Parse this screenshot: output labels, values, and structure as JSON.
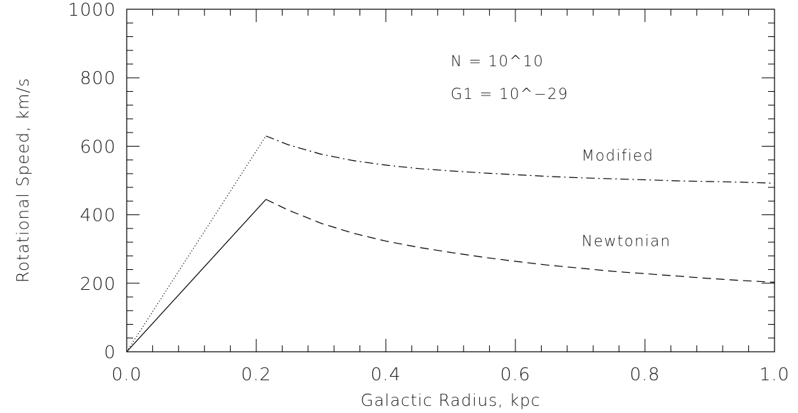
{
  "chart_data": {
    "type": "line",
    "title": "",
    "xlabel": "Galactic Radius, kpc",
    "ylabel": "Rotational Speed, km/s",
    "xlim": [
      0.0,
      1.0
    ],
    "ylim": [
      0,
      1000
    ],
    "x_ticks": [
      "0.0",
      "0.2",
      "0.4",
      "0.6",
      "0.8",
      "1.0"
    ],
    "y_ticks": [
      "0",
      "200",
      "400",
      "600",
      "800",
      "1000"
    ],
    "x_tick_values": [
      0.0,
      0.2,
      0.4,
      0.6,
      0.8,
      1.0
    ],
    "y_tick_values": [
      0,
      200,
      400,
      600,
      800,
      1000
    ],
    "grid": false,
    "legend": "none",
    "annotations": [
      {
        "text": "N  =  10^10",
        "x": 0.5,
        "y": 850
      },
      {
        "text": "G1  =  10^−29",
        "x": 0.5,
        "y": 755
      },
      {
        "text": "Modified",
        "x": 0.702,
        "y": 575
      },
      {
        "text": "Newtonian",
        "x": 0.702,
        "y": 325
      }
    ],
    "series": [
      {
        "name": "Modified",
        "style": "dotted",
        "x": [
          0.0,
          0.215
        ],
        "y": [
          0,
          630
        ]
      },
      {
        "name": "Modified",
        "style": "dashdot",
        "x": [
          0.215,
          0.25,
          0.3,
          0.35,
          0.4,
          0.45,
          0.5,
          0.55,
          0.6,
          0.65,
          0.7,
          0.75,
          0.8,
          0.85,
          0.9,
          0.95,
          1.0
        ],
        "y": [
          630,
          604,
          577,
          558,
          545,
          535,
          528,
          522,
          517,
          512,
          508,
          505,
          502,
          499,
          497,
          495,
          492
        ]
      },
      {
        "name": "Newtonian",
        "style": "solid",
        "x": [
          0.0,
          0.215
        ],
        "y": [
          0,
          445
        ]
      },
      {
        "name": "Newtonian",
        "style": "dashed",
        "x": [
          0.215,
          0.25,
          0.3,
          0.35,
          0.4,
          0.45,
          0.5,
          0.55,
          0.6,
          0.65,
          0.7,
          0.75,
          0.8,
          0.85,
          0.9,
          0.95,
          1.0
        ],
        "y": [
          445,
          413,
          375,
          346,
          323,
          305,
          290,
          276,
          264,
          253,
          244,
          235,
          228,
          221,
          214,
          208,
          203
        ]
      }
    ]
  }
}
